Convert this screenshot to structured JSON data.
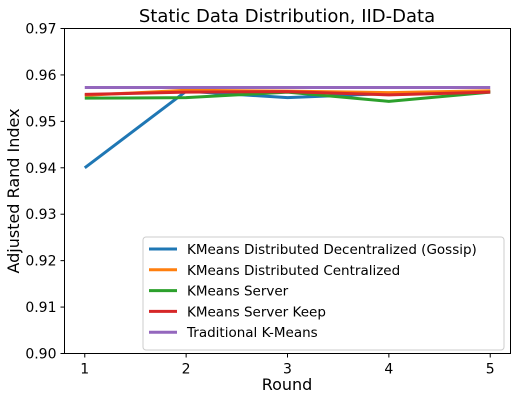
{
  "chart_data": {
    "type": "line",
    "title": "Static Data Distribution, IID-Data",
    "xlabel": "Round",
    "ylabel": "Adjusted Rand Index",
    "x": [
      1,
      2,
      3,
      4,
      5
    ],
    "xlim": [
      0.8,
      5.2
    ],
    "ylim": [
      0.9,
      0.97
    ],
    "xticks": [
      "1",
      "2",
      "3",
      "4",
      "5"
    ],
    "yticks": [
      "0.90",
      "0.91",
      "0.92",
      "0.93",
      "0.94",
      "0.95",
      "0.96",
      "0.97"
    ],
    "grid": false,
    "legend_position": "lower right",
    "series": [
      {
        "name": "KMeans Distributed Decentralized (Gossip)",
        "color": "#1f77b4",
        "values": [
          0.94,
          0.9565,
          0.9551,
          0.956,
          0.9565
        ]
      },
      {
        "name": "KMeans Distributed Centralized",
        "color": "#ff7f0e",
        "values": [
          0.9556,
          0.9567,
          0.9565,
          0.9562,
          0.9566
        ]
      },
      {
        "name": "KMeans Server",
        "color": "#2ca02c",
        "values": [
          0.955,
          0.9551,
          0.9563,
          0.9543,
          0.9563
        ]
      },
      {
        "name": "KMeans Server Keep",
        "color": "#d62728",
        "values": [
          0.9558,
          0.9563,
          0.9564,
          0.9557,
          0.9563
        ]
      },
      {
        "name": "Traditional K-Means",
        "color": "#9467bd",
        "values": [
          0.9573,
          0.9573,
          0.9573,
          0.9573,
          0.9573
        ]
      }
    ]
  }
}
